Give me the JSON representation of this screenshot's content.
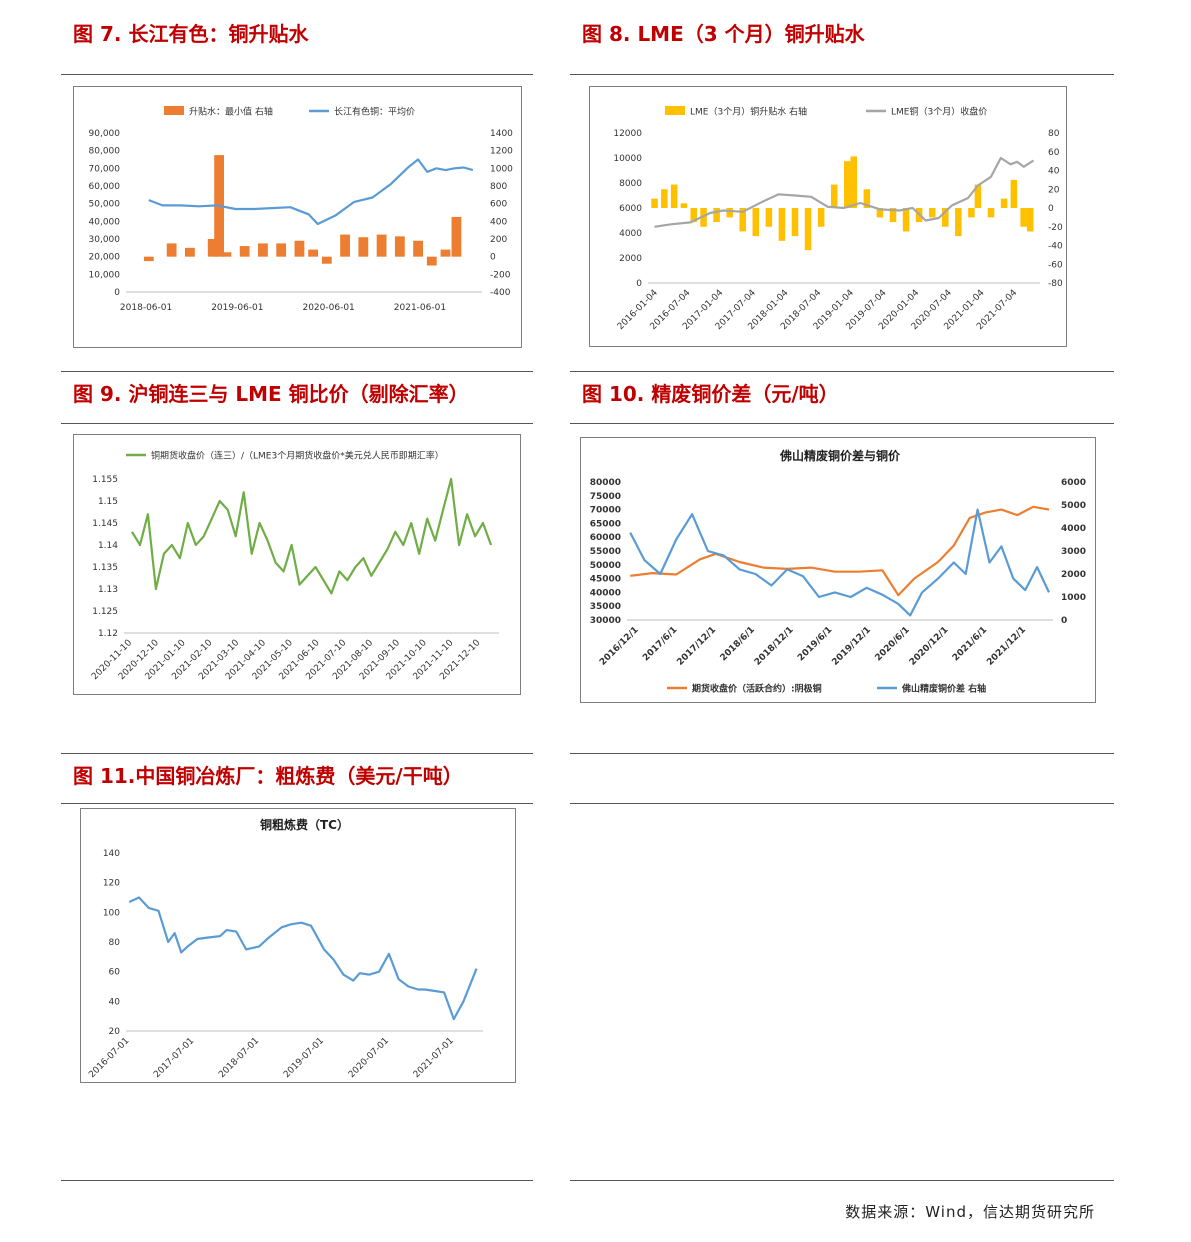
{
  "figures": [
    {
      "id": "fig7",
      "title": "图 7.  长江有色：铜升贴水"
    },
    {
      "id": "fig8",
      "title": "图 8.  LME（3 个月）铜升贴水"
    },
    {
      "id": "fig9",
      "title": "图 9.  沪铜连三与 LME 铜比价（剔除汇率）"
    },
    {
      "id": "fig10",
      "title": "图 10.  精废铜价差（元/吨）"
    },
    {
      "id": "fig11",
      "title": "图 11.中国铜冶炼厂：粗炼费（美元/干吨）"
    }
  ],
  "source": "数据来源：Wind，信达期货研究所",
  "chart_data": [
    {
      "id": "fig7",
      "type": "line",
      "title": "",
      "x_ticks": [
        "2018-06-01",
        "2019-06-01",
        "2020-06-01",
        "2021-06-01"
      ],
      "y_left": {
        "range": [
          0,
          90000
        ],
        "ticks": [
          "0",
          "10,000",
          "20,000",
          "30,000",
          "40,000",
          "50,000",
          "60,000",
          "70,000",
          "80,000",
          "90,000"
        ]
      },
      "y_right": {
        "range": [
          -400,
          1400
        ],
        "ticks": [
          "-400",
          "-200",
          "0",
          "200",
          "400",
          "600",
          "800",
          "1000",
          "1200",
          "1400"
        ]
      },
      "series": [
        {
          "name": "升贴水：最小值 右轴",
          "kind": "bar",
          "axis": "right",
          "color": "#ed7d31",
          "x": [
            2018.45,
            2018.7,
            2018.9,
            2019.15,
            2019.22,
            2019.3,
            2019.5,
            2019.7,
            2019.9,
            2020.1,
            2020.25,
            2020.4,
            2020.6,
            2020.8,
            2021.0,
            2021.2,
            2021.4,
            2021.55,
            2021.7,
            2021.82
          ],
          "y": [
            -50,
            150,
            100,
            200,
            1150,
            50,
            120,
            150,
            150,
            180,
            80,
            -80,
            250,
            220,
            250,
            230,
            180,
            -100,
            80,
            450
          ]
        },
        {
          "name": "长江有色铜：平均价",
          "kind": "line",
          "axis": "left",
          "color": "#5b9bd5",
          "x": [
            2018.45,
            2018.6,
            2018.8,
            2019.0,
            2019.2,
            2019.4,
            2019.6,
            2019.8,
            2020.0,
            2020.2,
            2020.3,
            2020.5,
            2020.7,
            2020.9,
            2021.1,
            2021.3,
            2021.4,
            2021.5,
            2021.6,
            2021.7,
            2021.8,
            2021.9,
            2022.0
          ],
          "y": [
            52000,
            49000,
            49000,
            48500,
            49000,
            47000,
            47000,
            47500,
            48000,
            44000,
            38500,
            43500,
            51000,
            53500,
            61000,
            71000,
            75000,
            68000,
            70000,
            69000,
            70000,
            70500,
            69000
          ]
        }
      ]
    },
    {
      "id": "fig8",
      "type": "bar",
      "title": "",
      "x_ticks": [
        "2016-01-04",
        "2016-07-04",
        "2017-01-04",
        "2017-07-04",
        "2018-01-04",
        "2018-07-04",
        "2019-01-04",
        "2019-07-04",
        "2020-01-04",
        "2020-07-04",
        "2021-01-04",
        "2021-07-04"
      ],
      "y_left": {
        "range": [
          0,
          12000
        ],
        "ticks": [
          "0",
          "2000",
          "4000",
          "6000",
          "8000",
          "10000",
          "12000"
        ]
      },
      "y_right": {
        "range": [
          -80,
          80
        ],
        "ticks": [
          "-80",
          "-60",
          "-40",
          "-20",
          "0",
          "20",
          "40",
          "60",
          "80"
        ]
      },
      "series": [
        {
          "name": "LME（3个月）铜升贴水 右轴",
          "kind": "bar",
          "axis": "right",
          "color": "#ffc000",
          "x": [
            2016.05,
            2016.2,
            2016.35,
            2016.5,
            2016.65,
            2016.8,
            2017.0,
            2017.2,
            2017.4,
            2017.6,
            2017.8,
            2018.0,
            2018.2,
            2018.4,
            2018.6,
            2018.8,
            2019.0,
            2019.1,
            2019.3,
            2019.5,
            2019.7,
            2019.9,
            2020.1,
            2020.3,
            2020.5,
            2020.7,
            2020.9,
            2021.0,
            2021.2,
            2021.4,
            2021.55,
            2021.7,
            2021.8
          ],
          "y": [
            10,
            20,
            25,
            5,
            -15,
            -20,
            -15,
            -10,
            -25,
            -30,
            -20,
            -35,
            -30,
            -45,
            -20,
            25,
            50,
            55,
            20,
            -10,
            -15,
            -25,
            -15,
            -10,
            -20,
            -30,
            -10,
            25,
            -10,
            10,
            30,
            -20,
            -25
          ]
        },
        {
          "name": "LME铜（3个月）收盘价",
          "kind": "line",
          "axis": "left",
          "color": "#a5a5a5",
          "x": [
            2016.05,
            2016.3,
            2016.6,
            2016.9,
            2017.1,
            2017.4,
            2017.7,
            2017.95,
            2018.2,
            2018.45,
            2018.7,
            2018.95,
            2019.2,
            2019.5,
            2019.8,
            2020.0,
            2020.2,
            2020.4,
            2020.6,
            2020.85,
            2021.0,
            2021.2,
            2021.35,
            2021.5,
            2021.6,
            2021.7,
            2021.85
          ],
          "y": [
            4500,
            4700,
            4850,
            5600,
            5800,
            5700,
            6500,
            7100,
            7000,
            6900,
            6100,
            6000,
            6400,
            5900,
            5800,
            6000,
            5000,
            5200,
            6200,
            6800,
            7800,
            8500,
            10000,
            9500,
            9700,
            9300,
            9800
          ]
        }
      ]
    },
    {
      "id": "fig9",
      "type": "line",
      "title": "",
      "x_ticks": [
        "2020-11-10",
        "2020-12-10",
        "2021-01-10",
        "2021-02-10",
        "2021-03-10",
        "2021-04-10",
        "2021-05-10",
        "2021-06-10",
        "2021-07-10",
        "2021-08-10",
        "2021-09-10",
        "2021-10-10",
        "2021-11-10",
        "2021-12-10"
      ],
      "y_left": {
        "range": [
          1.12,
          1.155
        ],
        "ticks": [
          "1.12",
          "1.125",
          "1.13",
          "1.135",
          "1.14",
          "1.145",
          "1.15",
          "1.155"
        ]
      },
      "series": [
        {
          "name": "铜期货收盘价（连三）/（LME3个月期货收盘价*美元兑人民币即期汇率）",
          "kind": "line",
          "axis": "left",
          "color": "#70ad47",
          "x": [
            0,
            0.3,
            0.6,
            0.9,
            1.2,
            1.5,
            1.8,
            2.1,
            2.4,
            2.7,
            3.0,
            3.3,
            3.6,
            3.9,
            4.2,
            4.5,
            4.8,
            5.1,
            5.4,
            5.7,
            6.0,
            6.3,
            6.6,
            6.9,
            7.2,
            7.5,
            7.8,
            8.1,
            8.4,
            8.7,
            9.0,
            9.3,
            9.6,
            9.9,
            10.2,
            10.5,
            10.8,
            11.1,
            11.4,
            11.7,
            12.0,
            12.3,
            12.6,
            12.9,
            13.2,
            13.5
          ],
          "y": [
            1.143,
            1.14,
            1.147,
            1.13,
            1.138,
            1.14,
            1.137,
            1.145,
            1.14,
            1.142,
            1.146,
            1.15,
            1.148,
            1.142,
            1.152,
            1.138,
            1.145,
            1.141,
            1.136,
            1.134,
            1.14,
            1.131,
            1.133,
            1.135,
            1.132,
            1.129,
            1.134,
            1.132,
            1.135,
            1.137,
            1.133,
            1.136,
            1.139,
            1.143,
            1.14,
            1.145,
            1.138,
            1.146,
            1.141,
            1.148,
            1.155,
            1.14,
            1.147,
            1.142,
            1.145,
            1.14
          ]
        }
      ]
    },
    {
      "id": "fig10",
      "type": "line",
      "title": "佛山精废铜价差与铜价",
      "x_ticks": [
        "2016/12/1",
        "2017/6/1",
        "2017/12/1",
        "2018/6/1",
        "2018/12/1",
        "2019/6/1",
        "2019/12/1",
        "2020/6/1",
        "2020/12/1",
        "2021/6/1",
        "2021/12/1"
      ],
      "y_left": {
        "range": [
          30000,
          80000
        ],
        "ticks": [
          "30000",
          "35000",
          "40000",
          "45000",
          "50000",
          "55000",
          "60000",
          "65000",
          "70000",
          "75000",
          "80000"
        ]
      },
      "y_right": {
        "range": [
          0,
          6000
        ],
        "ticks": [
          "0",
          "1000",
          "2000",
          "3000",
          "4000",
          "5000",
          "6000"
        ]
      },
      "series": [
        {
          "name": "期货收盘价（活跃合约）:阴极铜",
          "kind": "line",
          "axis": "left",
          "color": "#ed7d31",
          "x": [
            2016.92,
            2017.2,
            2017.5,
            2017.8,
            2018.0,
            2018.3,
            2018.6,
            2018.9,
            2019.2,
            2019.5,
            2019.8,
            2020.1,
            2020.3,
            2020.5,
            2020.8,
            2021.0,
            2021.2,
            2021.4,
            2021.6,
            2021.8,
            2022.0,
            2022.2
          ],
          "y": [
            46000,
            47000,
            46500,
            52000,
            54000,
            51000,
            49000,
            48500,
            49000,
            47500,
            47500,
            48000,
            39000,
            45000,
            51000,
            57000,
            67000,
            69000,
            70000,
            68000,
            71000,
            70000
          ]
        },
        {
          "name": "佛山精废铜价差 右轴",
          "kind": "line",
          "axis": "right",
          "color": "#5b9bd5",
          "x": [
            2016.92,
            2017.1,
            2017.3,
            2017.5,
            2017.7,
            2017.9,
            2018.1,
            2018.3,
            2018.5,
            2018.7,
            2018.9,
            2019.1,
            2019.3,
            2019.5,
            2019.7,
            2019.9,
            2020.1,
            2020.3,
            2020.45,
            2020.6,
            2020.8,
            2021.0,
            2021.15,
            2021.3,
            2021.45,
            2021.6,
            2021.75,
            2021.9,
            2022.05,
            2022.2
          ],
          "y": [
            3800,
            2600,
            2000,
            3500,
            4600,
            3000,
            2800,
            2200,
            2000,
            1500,
            2200,
            1900,
            1000,
            1200,
            1000,
            1400,
            1100,
            700,
            200,
            1200,
            1800,
            2500,
            2000,
            4800,
            2500,
            3200,
            1800,
            1300,
            2300,
            1200
          ]
        }
      ]
    },
    {
      "id": "fig11",
      "type": "line",
      "title": "铜粗炼费（TC）",
      "x_ticks": [
        "2016-07-01",
        "2017-07-01",
        "2018-07-01",
        "2019-07-01",
        "2020-07-01",
        "2021-07-01"
      ],
      "y_left": {
        "range": [
          20,
          140
        ],
        "ticks": [
          "20",
          "40",
          "60",
          "80",
          "100",
          "120",
          "140"
        ]
      },
      "series": [
        {
          "name": "铜粗炼费（TC）",
          "kind": "line",
          "axis": "left",
          "color": "#5b9bd5",
          "x": [
            2016.5,
            2016.65,
            2016.8,
            2016.95,
            2017.1,
            2017.2,
            2017.3,
            2017.4,
            2017.55,
            2017.7,
            2017.9,
            2018.0,
            2018.15,
            2018.3,
            2018.5,
            2018.65,
            2018.85,
            2019.0,
            2019.15,
            2019.3,
            2019.5,
            2019.65,
            2019.8,
            2019.95,
            2020.05,
            2020.2,
            2020.35,
            2020.5,
            2020.65,
            2020.8,
            2020.95,
            2021.05,
            2021.2,
            2021.35,
            2021.5,
            2021.65,
            2021.85
          ],
          "y": [
            107,
            110,
            103,
            101,
            80,
            86,
            73,
            77,
            82,
            83,
            84,
            88,
            87,
            75,
            77,
            83,
            90,
            92,
            93,
            91,
            75,
            68,
            58,
            54,
            59,
            58,
            60,
            72,
            55,
            50,
            48,
            48,
            47,
            46,
            28,
            40,
            62
          ]
        }
      ]
    }
  ]
}
